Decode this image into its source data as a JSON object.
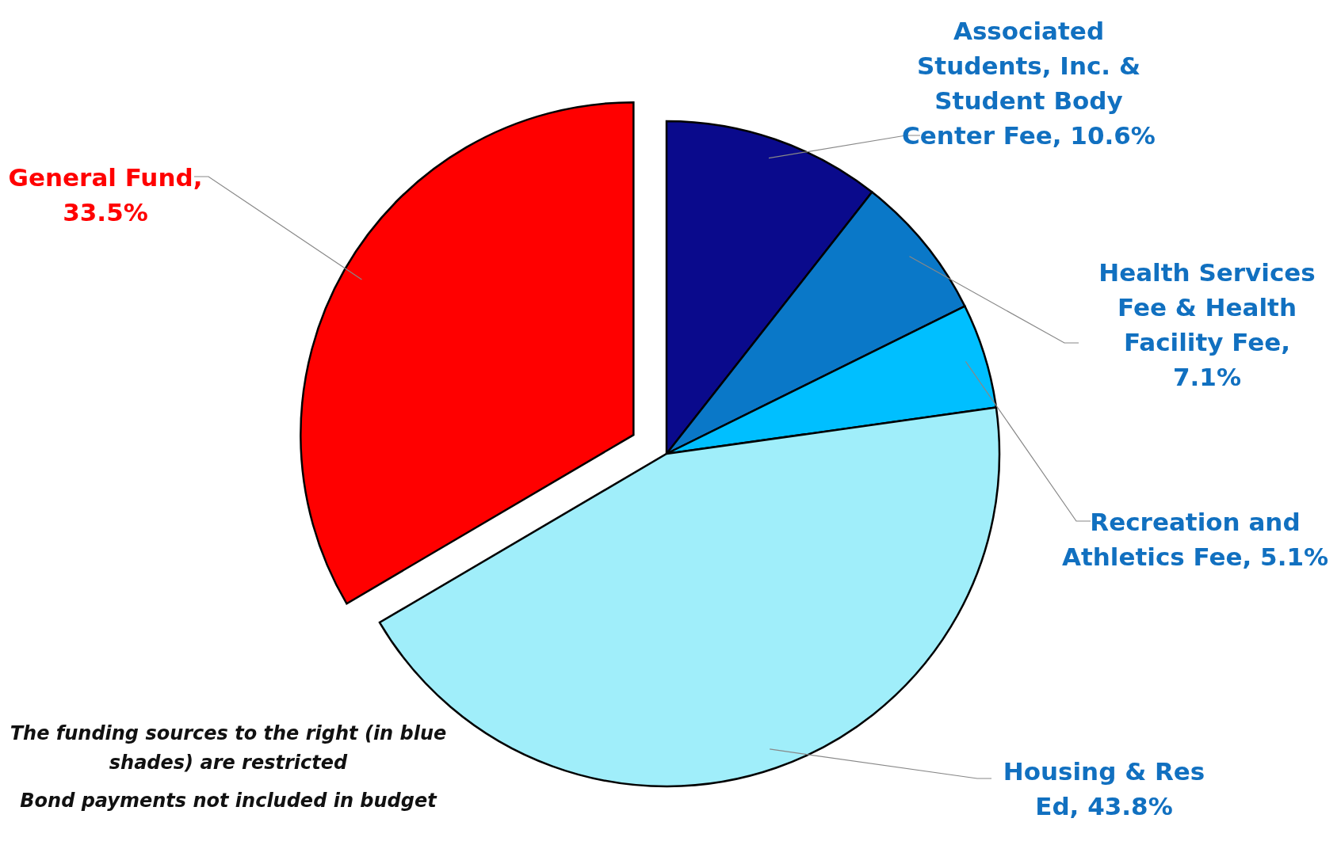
{
  "chart_data": {
    "type": "pie",
    "categories": [
      "Associated Students, Inc. & Student Body Center Fee, 10.6%",
      "Health Services Fee & Health Facility Fee, 7.1%",
      "Recreation and Athletics Fee, 5.1%",
      "Housing & Res Ed, 43.8%",
      "General Fund, 33.5%"
    ],
    "values": [
      10.6,
      7.1,
      5.1,
      43.8,
      33.5
    ],
    "colors": [
      "#0a0a8c",
      "#0a78c8",
      "#00bfff",
      "#a0eefa",
      "#ff0000"
    ],
    "annotations": [
      "The funding sources to the right (in blue shades) are restricted",
      "Bond payments not included in budget"
    ],
    "legend": false
  }
}
